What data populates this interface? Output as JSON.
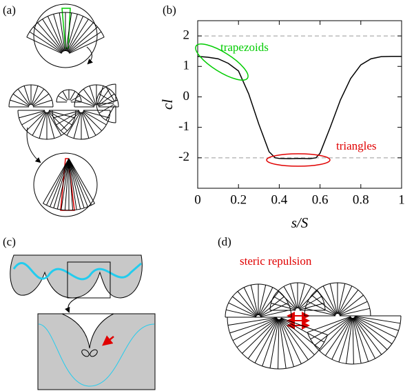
{
  "panel_labels": [
    "(a)",
    "(b)",
    "(c)",
    "(d)"
  ],
  "annotation_d": "steric repulsion",
  "chart_data": {
    "type": "line",
    "x_label": "s/S",
    "y_label": "cl",
    "x": [
      0,
      0.05,
      0.1,
      0.15,
      0.2,
      0.25,
      0.3,
      0.35,
      0.38,
      0.4,
      0.45,
      0.5,
      0.55,
      0.58,
      0.6,
      0.65,
      0.7,
      0.75,
      0.8,
      0.85,
      0.9,
      0.95,
      1
    ],
    "values": [
      1.33,
      1.3,
      1.25,
      1.1,
      0.85,
      0.1,
      -0.9,
      -1.8,
      -2.0,
      -2.02,
      -2.03,
      -2.02,
      -2.03,
      -2.0,
      -1.85,
      -1.0,
      -0.1,
      0.6,
      1.05,
      1.25,
      1.32,
      1.33,
      1.33
    ],
    "color": "#000000",
    "xlim": [
      0,
      1
    ],
    "ylim": [
      -3,
      2.5
    ],
    "xticks": [
      0,
      0.2,
      0.4,
      0.6,
      0.8,
      1
    ],
    "yticks": [
      -2,
      -1,
      0,
      1,
      2
    ],
    "reference_lines": [
      2,
      -2
    ],
    "annotations": [
      {
        "text": "trapezoids",
        "color": "#00cc00"
      },
      {
        "text": "triangles",
        "color": "#e00000"
      }
    ]
  }
}
